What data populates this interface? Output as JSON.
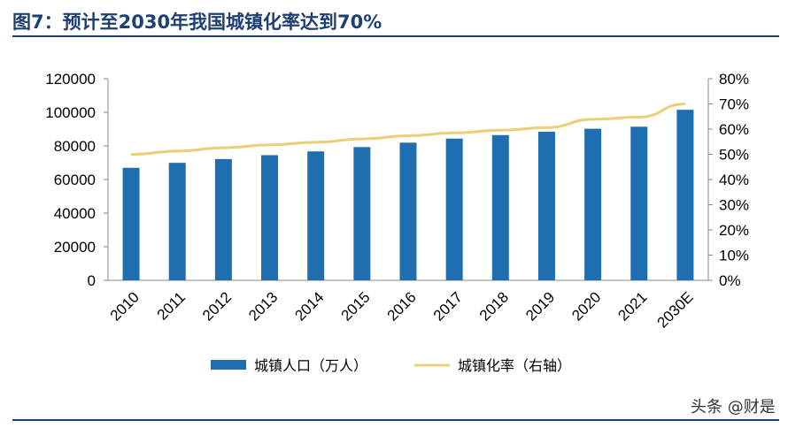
{
  "title": "图7：预计至2030年我国城镇化率达到70%",
  "watermark": "头条 @财是",
  "colors": {
    "bar": "#1f6fb0",
    "line": "#e9cf75",
    "title": "#1e3f73",
    "axis": "#888888",
    "text": "#000000"
  },
  "chart_data": {
    "type": "bar",
    "categories": [
      "2010",
      "2011",
      "2012",
      "2013",
      "2014",
      "2015",
      "2016",
      "2017",
      "2018",
      "2019",
      "2020",
      "2021",
      "2030E"
    ],
    "series": [
      {
        "name": "城镇人口（万人）",
        "type": "bar",
        "axis": "left",
        "values": [
          66978,
          69927,
          72175,
          74502,
          76738,
          79302,
          81924,
          84343,
          86433,
          88426,
          90220,
          91425,
          101500
        ]
      },
      {
        "name": "城镇化率（右轴）",
        "type": "line",
        "axis": "right",
        "values": [
          0.4995,
          0.5127,
          0.5257,
          0.5373,
          0.5477,
          0.561,
          0.5735,
          0.5852,
          0.5958,
          0.606,
          0.6389,
          0.6472,
          0.7
        ]
      }
    ],
    "y_left": {
      "min": 0,
      "max": 120000,
      "ticks": [
        "0",
        "20000",
        "40000",
        "60000",
        "80000",
        "100000",
        "120000"
      ]
    },
    "y_right": {
      "min": 0,
      "max": 0.8,
      "ticks": [
        "0%",
        "10%",
        "20%",
        "30%",
        "40%",
        "50%",
        "60%",
        "70%",
        "80%"
      ]
    },
    "grid": false,
    "legend_position": "bottom"
  }
}
